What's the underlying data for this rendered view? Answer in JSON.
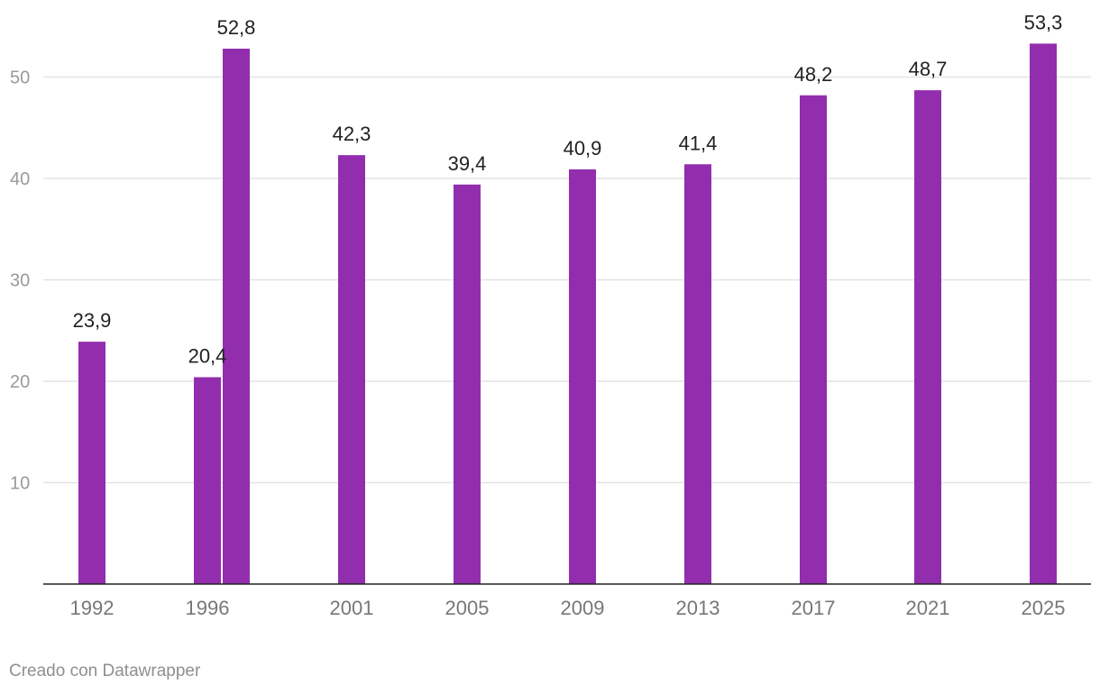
{
  "chart_data": {
    "type": "bar",
    "bar_color": "#922EAE",
    "ylim": [
      0,
      55
    ],
    "yticks": [
      10,
      20,
      30,
      40,
      50
    ],
    "grid": true,
    "categories": [
      "1992",
      "1996",
      "",
      "2001",
      "2005",
      "2009",
      "2013",
      "2017",
      "2021",
      "2025"
    ],
    "values": [
      23.9,
      20.4,
      52.8,
      42.3,
      39.4,
      40.9,
      41.4,
      48.2,
      48.7,
      53.3
    ],
    "value_labels": [
      "23,9",
      "20,4",
      "52,8",
      "42,3",
      "39,4",
      "40,9",
      "41,4",
      "48,2",
      "48,7",
      "53,3"
    ],
    "title": "",
    "xlabel": "",
    "ylabel": ""
  },
  "footer": {
    "credit": "Creado con Datawrapper"
  }
}
